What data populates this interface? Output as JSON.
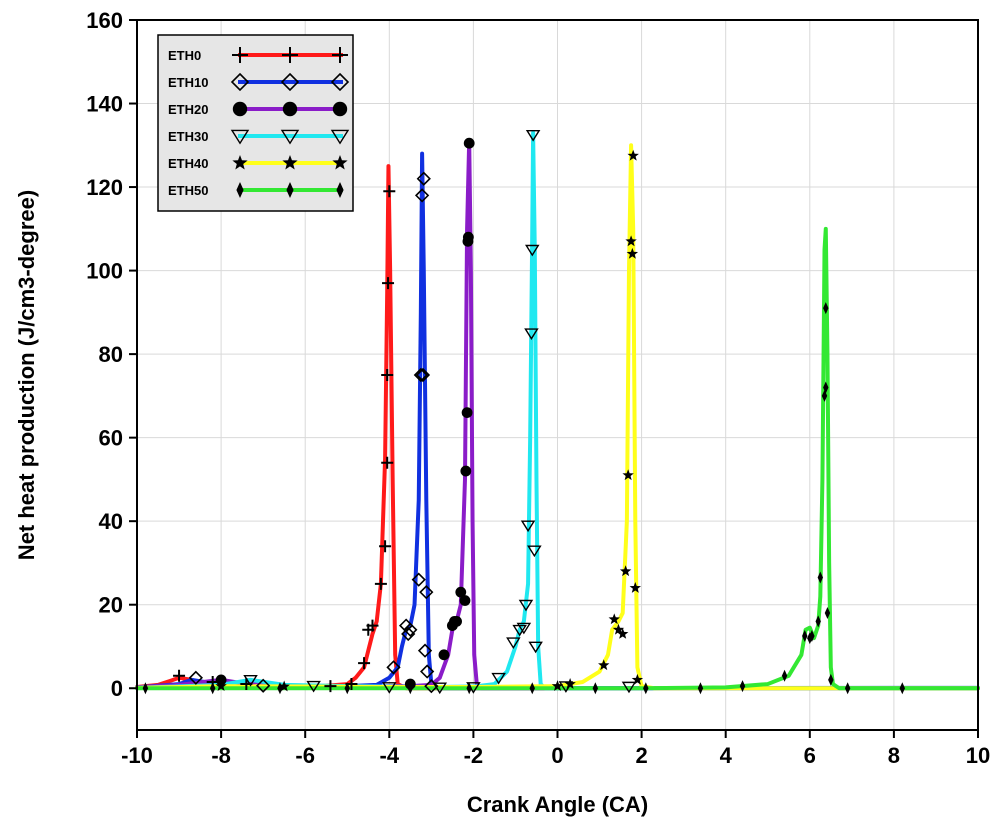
{
  "chart_data": {
    "type": "line",
    "title": "",
    "xlabel": "Crank Angle (CA)",
    "ylabel": "Net heat production (J/cm3-degree)",
    "xlim": [
      -10,
      10
    ],
    "ylim": [
      -10,
      160
    ],
    "xticks": [
      -10,
      -8,
      -6,
      -4,
      -2,
      0,
      2,
      4,
      6,
      8,
      10
    ],
    "yticks": [
      0,
      20,
      40,
      60,
      80,
      100,
      120,
      140,
      160
    ],
    "grid": true,
    "legend_position": "top-left",
    "series": [
      {
        "name": "ETH0",
        "color": "#ff1a1a",
        "marker": "plus",
        "points": [
          [
            -10,
            0.3
          ],
          [
            -9.5,
            0.8
          ],
          [
            -9.2,
            1.8
          ],
          [
            -9.0,
            2.5
          ],
          [
            -8.7,
            2.0
          ],
          [
            -8.3,
            1.0
          ],
          [
            -7.5,
            0.6
          ],
          [
            -6.5,
            0.5
          ],
          [
            -5.5,
            0.6
          ],
          [
            -5.0,
            1.0
          ],
          [
            -4.8,
            2.5
          ],
          [
            -4.6,
            5
          ],
          [
            -4.5,
            9
          ],
          [
            -4.4,
            13
          ],
          [
            -4.3,
            16
          ],
          [
            -4.2,
            25
          ],
          [
            -4.1,
            55
          ],
          [
            -4.05,
            95
          ],
          [
            -4.02,
            125
          ],
          [
            -3.98,
            100
          ],
          [
            -3.92,
            50
          ],
          [
            -3.86,
            8
          ],
          [
            -3.8,
            1
          ],
          [
            -3.6,
            0
          ],
          [
            -3.0,
            0
          ],
          [
            0,
            0
          ],
          [
            10,
            0
          ]
        ],
        "markers": [
          [
            -9.0,
            3
          ],
          [
            -8.2,
            1.5
          ],
          [
            -7.4,
            1.0
          ],
          [
            -5.4,
            0.5
          ],
          [
            -4.9,
            1
          ],
          [
            -4.6,
            6
          ],
          [
            -4.5,
            14
          ],
          [
            -4.4,
            15
          ],
          [
            -4.2,
            25
          ],
          [
            -4.1,
            34
          ],
          [
            -4.05,
            54
          ],
          [
            -4.05,
            75
          ],
          [
            -4.03,
            97
          ],
          [
            -4.0,
            119
          ]
        ]
      },
      {
        "name": "ETH10",
        "color": "#1030e0",
        "marker": "diamond",
        "points": [
          [
            -10,
            0.2
          ],
          [
            -9.0,
            1.0
          ],
          [
            -8.7,
            2.0
          ],
          [
            -8.4,
            1.5
          ],
          [
            -7.8,
            0.8
          ],
          [
            -6.5,
            0.5
          ],
          [
            -5.0,
            0.5
          ],
          [
            -4.3,
            0.8
          ],
          [
            -4.0,
            2.5
          ],
          [
            -3.8,
            5
          ],
          [
            -3.7,
            10
          ],
          [
            -3.6,
            14
          ],
          [
            -3.5,
            15
          ],
          [
            -3.4,
            20
          ],
          [
            -3.3,
            45
          ],
          [
            -3.25,
            90
          ],
          [
            -3.22,
            128
          ],
          [
            -3.18,
            100
          ],
          [
            -3.12,
            45
          ],
          [
            -3.06,
            8
          ],
          [
            -3.0,
            1
          ],
          [
            -2.8,
            0
          ],
          [
            0,
            0
          ],
          [
            10,
            0.1
          ]
        ],
        "markers": [
          [
            -8.6,
            2.5
          ],
          [
            -7.0,
            0.6
          ],
          [
            -3.9,
            5
          ],
          [
            -3.6,
            15
          ],
          [
            -3.55,
            13
          ],
          [
            -3.5,
            14
          ],
          [
            -3.3,
            26
          ],
          [
            -3.25,
            75
          ],
          [
            -3.2,
            75
          ],
          [
            -3.22,
            118
          ],
          [
            -3.18,
            122
          ],
          [
            -3.12,
            23
          ],
          [
            -3.15,
            9
          ],
          [
            -3.1,
            4
          ],
          [
            -3.0,
            0.5
          ]
        ]
      },
      {
        "name": "ETH20",
        "color": "#8a1cc8",
        "marker": "circle",
        "points": [
          [
            -10,
            0.2
          ],
          [
            -9.0,
            0.8
          ],
          [
            -8.0,
            2.0
          ],
          [
            -7.5,
            1.2
          ],
          [
            -6.5,
            0.5
          ],
          [
            -5.0,
            0.4
          ],
          [
            -3.5,
            0.5
          ],
          [
            -3.0,
            0.8
          ],
          [
            -2.8,
            2.5
          ],
          [
            -2.6,
            8
          ],
          [
            -2.5,
            14
          ],
          [
            -2.4,
            16
          ],
          [
            -2.3,
            20
          ],
          [
            -2.2,
            50
          ],
          [
            -2.15,
            110
          ],
          [
            -2.1,
            131
          ],
          [
            -2.06,
            100
          ],
          [
            -2.02,
            40
          ],
          [
            -1.98,
            8
          ],
          [
            -1.92,
            1
          ],
          [
            -1.8,
            0
          ],
          [
            0,
            0
          ],
          [
            10,
            0
          ]
        ],
        "markers": [
          [
            -8.0,
            2
          ],
          [
            -3.5,
            1
          ],
          [
            -2.7,
            8
          ],
          [
            -2.5,
            15
          ],
          [
            -2.45,
            16
          ],
          [
            -2.4,
            16
          ],
          [
            -2.3,
            23
          ],
          [
            -2.2,
            21
          ],
          [
            -2.18,
            52
          ],
          [
            -2.15,
            66
          ],
          [
            -2.13,
            107
          ],
          [
            -2.12,
            108
          ],
          [
            -2.1,
            130.5
          ]
        ]
      },
      {
        "name": "ETH30",
        "color": "#20e8f0",
        "marker": "triangle",
        "points": [
          [
            -10,
            0.1
          ],
          [
            -8.0,
            0.8
          ],
          [
            -7.3,
            2.0
          ],
          [
            -6.5,
            0.8
          ],
          [
            -5.0,
            0.5
          ],
          [
            -3.0,
            0.3
          ],
          [
            -2.0,
            0.4
          ],
          [
            -1.5,
            1.0
          ],
          [
            -1.2,
            4
          ],
          [
            -1.0,
            10
          ],
          [
            -0.9,
            14
          ],
          [
            -0.8,
            16
          ],
          [
            -0.7,
            25
          ],
          [
            -0.65,
            60
          ],
          [
            -0.6,
            110
          ],
          [
            -0.58,
            133
          ],
          [
            -0.54,
            105
          ],
          [
            -0.5,
            50
          ],
          [
            -0.46,
            10
          ],
          [
            -0.4,
            1
          ],
          [
            -0.3,
            0
          ],
          [
            0,
            0
          ],
          [
            10,
            0
          ]
        ],
        "markers": [
          [
            -7.3,
            2
          ],
          [
            -5.8,
            0.6
          ],
          [
            -4.0,
            0.3
          ],
          [
            -2.8,
            0.2
          ],
          [
            -2.0,
            0.3
          ],
          [
            -1.4,
            2.5
          ],
          [
            -1.05,
            11
          ],
          [
            -0.9,
            14
          ],
          [
            -0.8,
            14.5
          ],
          [
            -0.75,
            20
          ],
          [
            -0.7,
            39
          ],
          [
            -0.62,
            85
          ],
          [
            -0.6,
            105
          ],
          [
            -0.58,
            132.5
          ],
          [
            -0.55,
            33
          ],
          [
            -0.52,
            10
          ],
          [
            0.2,
            0.5
          ],
          [
            1.7,
            0.4
          ]
        ]
      },
      {
        "name": "ETH40",
        "color": "#ffff1a",
        "marker": "star",
        "points": [
          [
            -10,
            0.1
          ],
          [
            -8.0,
            0.5
          ],
          [
            -6.0,
            0.4
          ],
          [
            -4.0,
            0.3
          ],
          [
            -2.0,
            0.3
          ],
          [
            0,
            0.5
          ],
          [
            0.6,
            1.5
          ],
          [
            1.0,
            4
          ],
          [
            1.2,
            8
          ],
          [
            1.3,
            14
          ],
          [
            1.45,
            16
          ],
          [
            1.55,
            18
          ],
          [
            1.65,
            40
          ],
          [
            1.7,
            100
          ],
          [
            1.75,
            130
          ],
          [
            1.8,
            110
          ],
          [
            1.85,
            40
          ],
          [
            1.9,
            5
          ],
          [
            2.0,
            0.5
          ],
          [
            2.3,
            0
          ],
          [
            10,
            0
          ]
        ],
        "markers": [
          [
            -8.0,
            0.5
          ],
          [
            -6.5,
            0.4
          ],
          [
            0.0,
            0.5
          ],
          [
            0.3,
            1
          ],
          [
            1.1,
            5.5
          ],
          [
            1.35,
            16.5
          ],
          [
            1.45,
            14
          ],
          [
            1.55,
            13
          ],
          [
            1.62,
            28
          ],
          [
            1.68,
            51
          ],
          [
            1.75,
            107
          ],
          [
            1.78,
            104
          ],
          [
            1.8,
            127.5
          ],
          [
            1.85,
            24
          ],
          [
            1.9,
            2
          ]
        ]
      },
      {
        "name": "ETH50",
        "color": "#33e833",
        "marker": "slimdiamond",
        "points": [
          [
            -10,
            0
          ],
          [
            -6.0,
            0
          ],
          [
            -2.0,
            0
          ],
          [
            2.0,
            0
          ],
          [
            4.0,
            0.2
          ],
          [
            5.0,
            1.0
          ],
          [
            5.5,
            3
          ],
          [
            5.8,
            8
          ],
          [
            5.9,
            14
          ],
          [
            6.0,
            14.5
          ],
          [
            6.1,
            12
          ],
          [
            6.2,
            15
          ],
          [
            6.25,
            22
          ],
          [
            6.3,
            50
          ],
          [
            6.35,
            105
          ],
          [
            6.38,
            110
          ],
          [
            6.42,
            80
          ],
          [
            6.46,
            30
          ],
          [
            6.5,
            5
          ],
          [
            6.55,
            1
          ],
          [
            6.7,
            0
          ],
          [
            10,
            0
          ]
        ],
        "markers": [
          [
            -9.8,
            0
          ],
          [
            -8.2,
            0
          ],
          [
            -6.6,
            0
          ],
          [
            -5.0,
            0
          ],
          [
            -3.5,
            0
          ],
          [
            -2.1,
            0
          ],
          [
            -0.6,
            0
          ],
          [
            0.9,
            0
          ],
          [
            2.1,
            0
          ],
          [
            3.4,
            0
          ],
          [
            4.4,
            0.5
          ],
          [
            5.4,
            3
          ],
          [
            5.88,
            12.5
          ],
          [
            6.0,
            12
          ],
          [
            6.05,
            12.5
          ],
          [
            6.2,
            16
          ],
          [
            6.25,
            26.5
          ],
          [
            6.35,
            70
          ],
          [
            6.38,
            72
          ],
          [
            6.38,
            91
          ],
          [
            6.42,
            18
          ],
          [
            6.5,
            2
          ],
          [
            6.9,
            0
          ],
          [
            8.2,
            0
          ]
        ]
      }
    ]
  }
}
